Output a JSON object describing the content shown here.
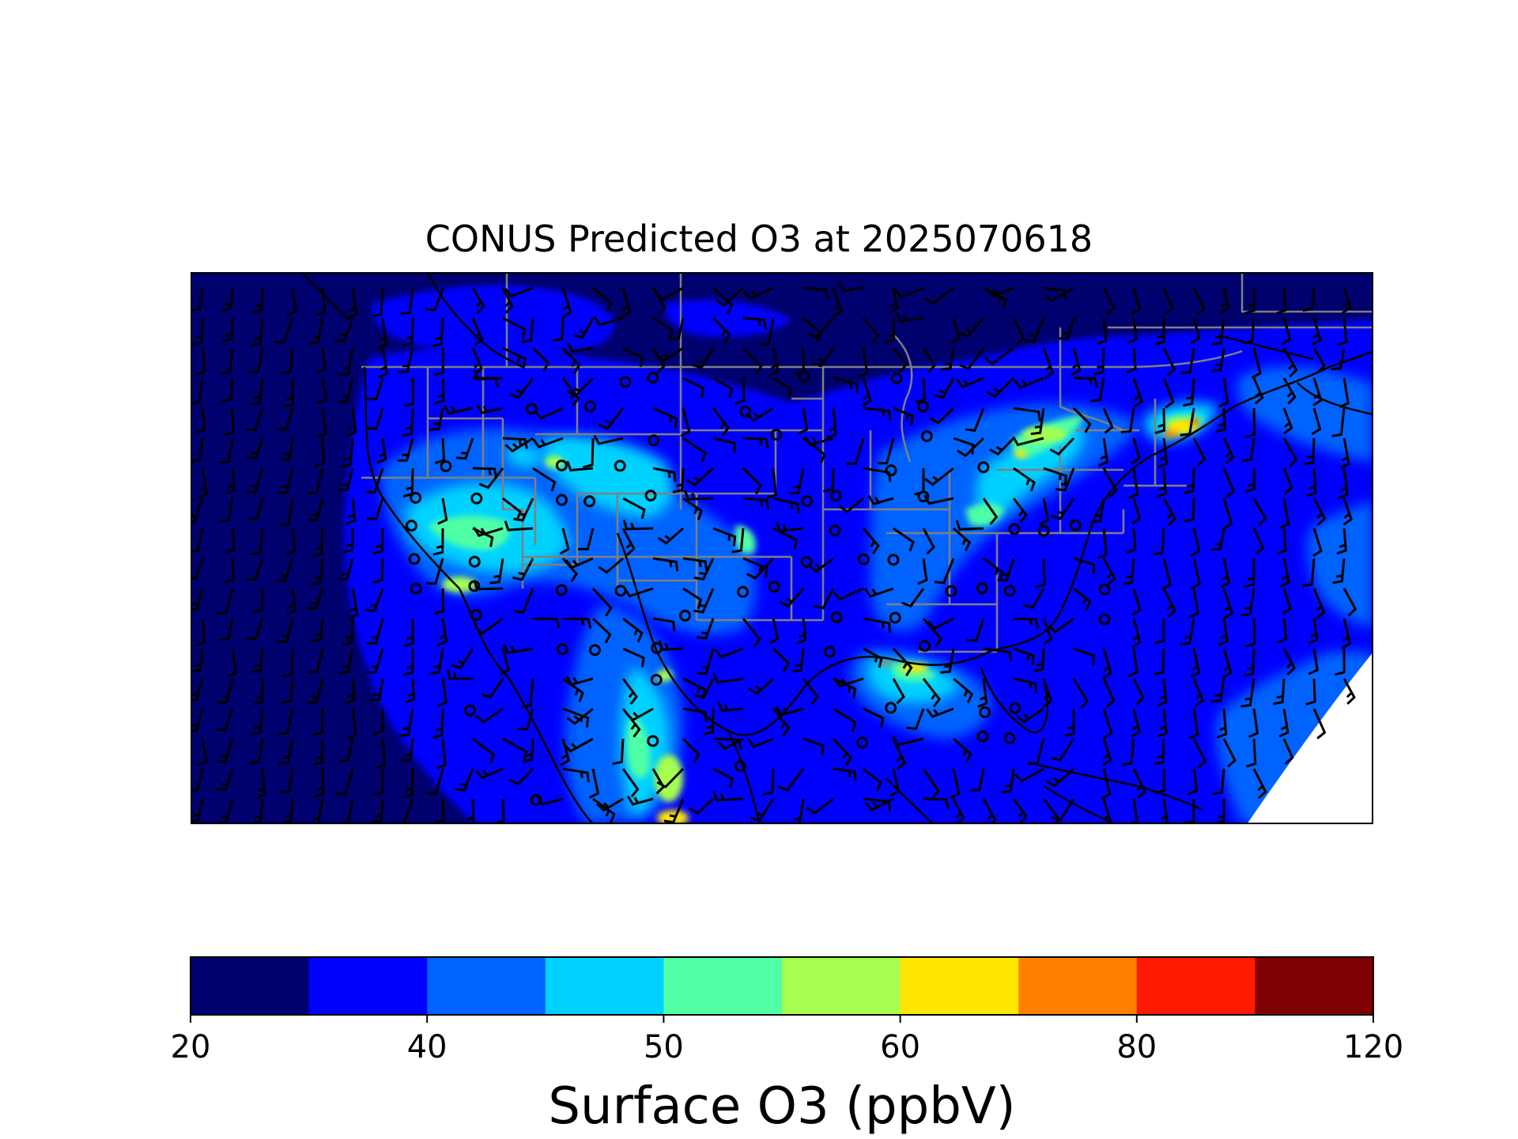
{
  "title": "CONUS Predicted O3 at 2025070618",
  "colorbar": {
    "label": "Surface O3 (ppbV)",
    "levels": [
      20,
      25,
      40,
      45,
      50,
      55,
      60,
      65,
      80,
      85,
      120
    ],
    "tick_labels": [
      "20",
      "40",
      "50",
      "60",
      "80",
      "120"
    ],
    "colors": [
      "#00006e",
      "#0000ff",
      "#0064ff",
      "#00d2ff",
      "#50ffa6",
      "#a6ff50",
      "#ffe600",
      "#ff7f00",
      "#ff1900",
      "#7f0000"
    ]
  },
  "map_colors": {
    "state_border": "#808080",
    "coastline": "#000000",
    "wind_barb": "#000000"
  }
}
